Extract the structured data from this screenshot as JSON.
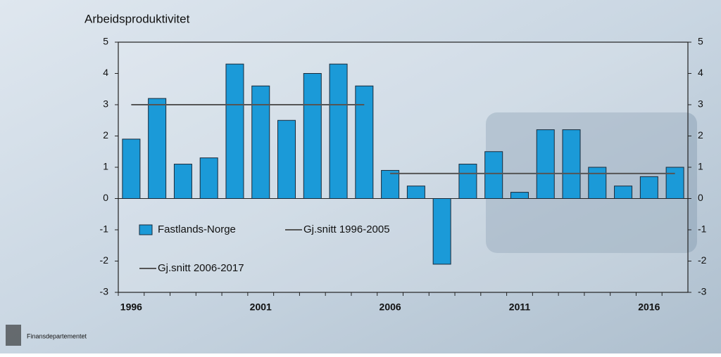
{
  "chart_data": {
    "type": "bar",
    "title": "Arbeidsproduktivitet",
    "categories": [
      "1996",
      null,
      null,
      null,
      null,
      "2001",
      null,
      null,
      null,
      null,
      "2006",
      null,
      null,
      null,
      null,
      "2011",
      null,
      null,
      null,
      null,
      "2016",
      null
    ],
    "series": [
      {
        "name": "Fastlands-Norge",
        "type": "bar",
        "color": "#1b9ad8",
        "values": [
          1.9,
          3.2,
          1.1,
          1.3,
          4.3,
          3.6,
          2.5,
          4.0,
          4.3,
          3.6,
          0.9,
          0.4,
          -2.1,
          1.1,
          1.5,
          0.2,
          2.2,
          2.2,
          1.0,
          0.4,
          0.7,
          1.0
        ]
      },
      {
        "name": "Gj.snitt 1996-2005",
        "type": "line",
        "color": "#555555",
        "values": [
          3,
          3,
          3,
          3,
          3,
          3,
          3,
          3,
          3,
          3,
          null,
          null,
          null,
          null,
          null,
          null,
          null,
          null,
          null,
          null,
          null,
          null
        ]
      },
      {
        "name": "Gj.snitt 2006-2017",
        "type": "line",
        "color": "#555555",
        "values": [
          null,
          null,
          null,
          null,
          null,
          null,
          null,
          null,
          null,
          null,
          0.8,
          0.8,
          0.8,
          0.8,
          0.8,
          0.8,
          0.8,
          0.8,
          0.8,
          0.8,
          0.8,
          0.8
        ]
      }
    ],
    "ylim": [
      -3,
      5
    ],
    "yticks": [
      -3,
      -2,
      -1,
      0,
      1,
      2,
      3,
      4,
      5
    ],
    "y2lim": [
      -3,
      5
    ],
    "y2ticks": [
      -3,
      -2,
      -1,
      0,
      1,
      2,
      3,
      4,
      5
    ],
    "legend": "lower left"
  },
  "footer": "Finansdepartementet"
}
